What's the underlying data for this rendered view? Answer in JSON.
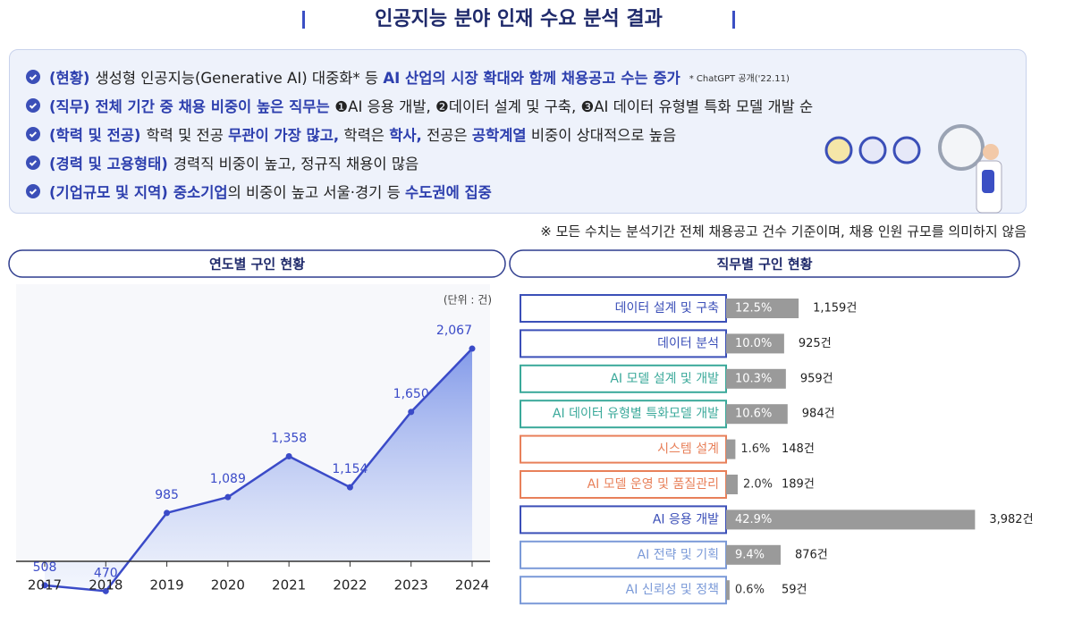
{
  "title": "인공지능 분야 인재 수요 분석 결과",
  "summary": {
    "items": [
      {
        "label": "(현황)",
        "parts": [
          {
            "text": "생성형 인공지능(Generative AI) 대중화* 등 "
          },
          {
            "text": "AI 산업의 시장 확대와 함께 채용공고 수는 증가",
            "b": true
          }
        ],
        "note": "* ChatGPT 공개('22.11)"
      },
      {
        "label": "(직무)",
        "parts": [
          {
            "text": "전체 기간 중 채용 비중이 높은 직무는 ",
            "b": true
          },
          {
            "text": "❶AI 응용 개발, ❷데이터 설계 및 구축, ❸AI 데이터 유형별 특화 모델 개발 순"
          }
        ]
      },
      {
        "label": "(학력 및 전공)",
        "parts": [
          {
            "text": "학력 및 전공 "
          },
          {
            "text": "무관이 가장 많고,",
            "b": true
          },
          {
            "text": " 학력은 "
          },
          {
            "text": "학사,",
            "b": true
          },
          {
            "text": " 전공은 "
          },
          {
            "text": "공학계열",
            "b": true
          },
          {
            "text": " 비중이 상대적으로 높음"
          }
        ]
      },
      {
        "label": "(경력 및 고용형태)",
        "parts": [
          {
            "text": "경력직 비중이 높고, 정규직 채용이 많음"
          }
        ]
      },
      {
        "label": "(기업규모 및 지역)",
        "parts": [
          {
            "text": "중소기업",
            "b": true
          },
          {
            "text": "의 비중이 높고 서울·경기 등 "
          },
          {
            "text": "수도권에 집중",
            "b": true
          }
        ]
      }
    ]
  },
  "disclaimer": "※ 모든 수치는 분석기간 전체 채용공고 건수 기준이며, 채용 인원 규모를 의미하지 않음",
  "chart_data": [
    {
      "type": "line",
      "title": "연도별 구인 현황",
      "unit": "(단위 : 건)",
      "categories": [
        "2017",
        "2018",
        "2019",
        "2020",
        "2021",
        "2022",
        "2023",
        "2024"
      ],
      "values": [
        508,
        470,
        985,
        1089,
        1358,
        1154,
        1650,
        2067
      ],
      "value_labels": [
        "508",
        "470",
        "985",
        "1,089",
        "1,358",
        "1,154",
        "1,650",
        "2,067"
      ],
      "ylim": [
        360,
        2450
      ],
      "color": "#3b4bc8"
    },
    {
      "type": "hbar",
      "title": "직무별 구인 현황",
      "categories": [
        "데이터 설계 및 구축",
        "데이터 분석",
        "AI 모델 설계 및 개발",
        "AI 데이터 유형별 특화모델 개발",
        "시스템 설계",
        "AI 모델 운영 및 품질관리",
        "AI 응용 개발",
        "AI 전략 및 기획",
        "AI 신뢰성 및 정책"
      ],
      "values": [
        1159,
        925,
        959,
        984,
        148,
        189,
        3982,
        876,
        59
      ],
      "value_labels": [
        "1,159건",
        "925건",
        "959건",
        "984건",
        "148건",
        "189건",
        "3,982건",
        "876건",
        "59건"
      ],
      "shares": [
        12.5,
        10.0,
        10.3,
        10.6,
        1.6,
        2.0,
        42.9,
        9.4,
        0.6
      ],
      "share_labels": [
        "12.5%",
        "10.0%",
        "10.3%",
        "10.6%",
        "1.6%",
        "2.0%",
        "42.9%",
        "9.4%",
        "0.6%"
      ],
      "category_colors": [
        "#3b4fb8",
        "#3b4fb8",
        "#3aa99a",
        "#3aa99a",
        "#e8805a",
        "#e8805a",
        "#3b4fb8",
        "#7b9ad8",
        "#7b9ad8"
      ],
      "color": "#9a9a9a",
      "xlim": [
        0,
        45
      ]
    }
  ]
}
